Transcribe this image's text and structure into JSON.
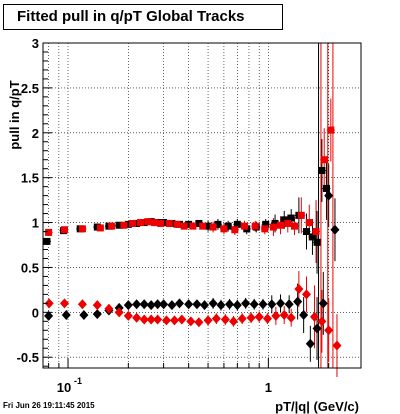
{
  "title": "Fitted pull in q/pT  Global Tracks",
  "timestamp": "Fri Jun 26 19:11:45 2015",
  "chart_data": {
    "type": "scatter",
    "title": "Fitted pull in q/pT  Global Tracks",
    "xlabel": "pT/|q| (GeV/c)",
    "ylabel": "pull in q/pT",
    "x_scale": "log",
    "xlim": [
      0.075,
      2.9
    ],
    "ylim": [
      -0.62,
      3.0
    ],
    "grid": true,
    "y_ticks": [
      "-0.5",
      "0",
      "0.5",
      "1",
      "1.5",
      "2",
      "2.5",
      "3"
    ],
    "x_tick_labels": [
      "10",
      "1"
    ],
    "x_tick_label_exponent": "-1",
    "series": [
      {
        "color": "#000000",
        "marker": "square",
        "x": [
          0.0785,
          0.095,
          0.115,
          0.14,
          0.16,
          0.18,
          0.2,
          0.22,
          0.24,
          0.26,
          0.28,
          0.3,
          0.33,
          0.36,
          0.4,
          0.45,
          0.5,
          0.56,
          0.63,
          0.7,
          0.78,
          0.87,
          0.97,
          1.08,
          1.2,
          1.3,
          1.42,
          1.55,
          1.66,
          1.75,
          1.85,
          1.95
        ],
        "y": [
          0.79,
          0.91,
          0.93,
          0.95,
          0.96,
          0.97,
          0.98,
          0.99,
          1.0,
          1.01,
          1.0,
          1.0,
          0.99,
          0.98,
          0.98,
          0.99,
          0.96,
          0.98,
          0.96,
          0.98,
          0.93,
          0.95,
          0.98,
          0.99,
          1.03,
          1.05,
          1.08,
          0.9,
          0.84,
          0.78,
          1.58,
          1.38
        ]
      },
      {
        "color": "#ee0000",
        "marker": "square",
        "x": [
          0.08,
          0.096,
          0.118,
          0.145,
          0.165,
          0.19,
          0.21,
          0.23,
          0.25,
          0.27,
          0.29,
          0.32,
          0.35,
          0.38,
          0.42,
          0.47,
          0.53,
          0.6,
          0.68,
          0.76,
          0.86,
          0.96,
          1.06,
          1.15,
          1.25,
          1.35,
          1.46,
          1.6,
          1.73,
          1.9,
          2.05
        ],
        "y": [
          0.89,
          0.92,
          0.93,
          0.94,
          0.96,
          0.97,
          0.99,
          1.0,
          1.01,
          1.0,
          0.99,
          0.99,
          0.98,
          0.96,
          0.96,
          0.96,
          0.95,
          0.93,
          0.92,
          0.96,
          0.96,
          0.93,
          0.95,
          0.97,
          0.99,
          0.96,
          1.08,
          1.0,
          0.9,
          1.7,
          2.03
        ]
      },
      {
        "color": "#000000",
        "marker": "diamond",
        "x": [
          0.08,
          0.098,
          0.12,
          0.14,
          0.16,
          0.18,
          0.2,
          0.22,
          0.24,
          0.26,
          0.28,
          0.3,
          0.33,
          0.36,
          0.4,
          0.44,
          0.48,
          0.53,
          0.58,
          0.64,
          0.7,
          0.77,
          0.85,
          0.94,
          1.04,
          1.15,
          1.27,
          1.4,
          1.5,
          1.62,
          1.75,
          1.88,
          2.0,
          2.15
        ],
        "y": [
          -0.04,
          -0.03,
          -0.03,
          -0.02,
          0.02,
          0.05,
          0.08,
          0.09,
          0.09,
          0.08,
          0.09,
          0.09,
          0.08,
          0.1,
          0.09,
          0.09,
          0.08,
          0.1,
          0.08,
          0.09,
          0.08,
          0.1,
          0.09,
          0.09,
          0.09,
          0.1,
          0.09,
          0.12,
          -0.03,
          -0.35,
          -0.18,
          0.1,
          1.3,
          0.92
        ]
      },
      {
        "color": "#ee0000",
        "marker": "diamond",
        "x": [
          0.0805,
          0.096,
          0.118,
          0.14,
          0.16,
          0.18,
          0.2,
          0.22,
          0.24,
          0.26,
          0.28,
          0.31,
          0.34,
          0.37,
          0.41,
          0.45,
          0.5,
          0.55,
          0.61,
          0.67,
          0.74,
          0.82,
          0.9,
          0.99,
          1.09,
          1.2,
          1.3,
          1.42,
          1.55,
          1.7,
          1.85,
          2.0,
          2.2
        ],
        "y": [
          0.1,
          0.1,
          0.09,
          0.08,
          0.04,
          0.0,
          -0.04,
          -0.06,
          -0.08,
          -0.08,
          -0.08,
          -0.09,
          -0.09,
          -0.08,
          -0.1,
          -0.11,
          -0.09,
          -0.07,
          -0.08,
          -0.1,
          -0.07,
          -0.06,
          -0.05,
          -0.07,
          -0.04,
          -0.03,
          -0.06,
          0.26,
          0.2,
          -0.05,
          -0.1,
          -0.2,
          -0.37
        ]
      }
    ]
  }
}
